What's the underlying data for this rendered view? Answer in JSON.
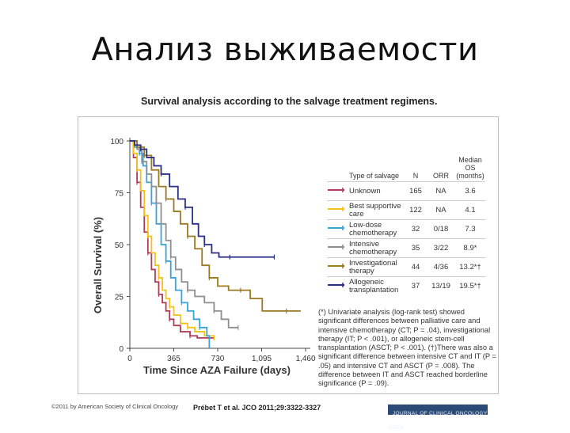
{
  "slide": {
    "title": "Анализ выживаемости"
  },
  "figure": {
    "title": "Survival analysis according to the salvage treatment regimens.",
    "footnote": "(*) Univariate analysis (log-rank test) showed significant differences between palliative care and intensive chemotherapy (CT; P = .04), investigational therapy (IT; P < .001), or allogeneic stem-cell transplantation (ASCT; P < .001). (†)There was also a significant difference between intensive CT and IT (P = .05) and intensive CT and ASCT (P = .008). The difference between IT and ASCT reached borderline significance (P = .09).",
    "legend_headers": {
      "type": "Type of salvage",
      "n": "N",
      "orr": "ORR",
      "median": "Median OS (months)"
    },
    "legend_rows": [
      {
        "name": "Unknown",
        "n": "165",
        "orr": "NA",
        "median": "3.6",
        "color": "#b03a5b"
      },
      {
        "name": "Best supportive care",
        "n": "122",
        "orr": "NA",
        "median": "4.1",
        "color": "#f2c21b"
      },
      {
        "name": "Low-dose chemotherapy",
        "n": "32",
        "orr": "0/18",
        "median": "7.3",
        "color": "#3aa3d8"
      },
      {
        "name": "Intensive chemotherapy",
        "n": "35",
        "orr": "3/22",
        "median": "8.9*",
        "color": "#8f8f8f"
      },
      {
        "name": "Investigational therapy",
        "n": "44",
        "orr": "4/36",
        "median": "13.2*†",
        "color": "#9a7a20"
      },
      {
        "name": "Allogeneic transplantation",
        "n": "37",
        "orr": "13/19",
        "median": "19.5*†",
        "color": "#2a2f86"
      }
    ]
  },
  "chart_data": {
    "type": "line",
    "xlabel": "Time Since AZA Failure (days)",
    "ylabel": "Overall Survival (%)",
    "xlim": [
      0,
      1460
    ],
    "ylim": [
      0,
      100
    ],
    "xticks": [
      "0",
      "365",
      "730",
      "1,095",
      "1,460"
    ],
    "yticks": [
      "0",
      "25",
      "50",
      "75",
      "100"
    ],
    "series": [
      {
        "name": "Unknown",
        "color": "#b03a5b",
        "points": [
          [
            0,
            100
          ],
          [
            30,
            92
          ],
          [
            60,
            80
          ],
          [
            90,
            68
          ],
          [
            120,
            56
          ],
          [
            150,
            46
          ],
          [
            180,
            38
          ],
          [
            210,
            32
          ],
          [
            240,
            26
          ],
          [
            270,
            22
          ],
          [
            300,
            18
          ],
          [
            330,
            14
          ],
          [
            365,
            11
          ],
          [
            420,
            8
          ],
          [
            500,
            6
          ],
          [
            560,
            5
          ],
          [
            640,
            5
          ],
          [
            700,
            5
          ]
        ]
      },
      {
        "name": "Best supportive care",
        "color": "#f2c21b",
        "points": [
          [
            0,
            100
          ],
          [
            30,
            94
          ],
          [
            60,
            86
          ],
          [
            90,
            76
          ],
          [
            120,
            64
          ],
          [
            150,
            54
          ],
          [
            180,
            46
          ],
          [
            210,
            40
          ],
          [
            240,
            34
          ],
          [
            270,
            28
          ],
          [
            300,
            24
          ],
          [
            330,
            20
          ],
          [
            365,
            16
          ],
          [
            420,
            12
          ],
          [
            480,
            10
          ],
          [
            540,
            8
          ],
          [
            620,
            6
          ],
          [
            700,
            5
          ]
        ]
      },
      {
        "name": "Low-dose chemotherapy",
        "color": "#3aa3d8",
        "points": [
          [
            0,
            100
          ],
          [
            40,
            97
          ],
          [
            80,
            94
          ],
          [
            110,
            88
          ],
          [
            140,
            80
          ],
          [
            180,
            70
          ],
          [
            220,
            60
          ],
          [
            260,
            50
          ],
          [
            300,
            42
          ],
          [
            340,
            34
          ],
          [
            380,
            28
          ],
          [
            430,
            22
          ],
          [
            480,
            18
          ],
          [
            530,
            14
          ],
          [
            580,
            10
          ],
          [
            640,
            6
          ],
          [
            660,
            0
          ]
        ]
      },
      {
        "name": "Intensive chemotherapy",
        "color": "#8f8f8f",
        "points": [
          [
            0,
            100
          ],
          [
            60,
            96
          ],
          [
            100,
            90
          ],
          [
            140,
            84
          ],
          [
            180,
            78
          ],
          [
            220,
            70
          ],
          [
            260,
            60
          ],
          [
            300,
            52
          ],
          [
            340,
            44
          ],
          [
            380,
            38
          ],
          [
            430,
            32
          ],
          [
            480,
            28
          ],
          [
            540,
            25
          ],
          [
            620,
            22
          ],
          [
            700,
            18
          ],
          [
            760,
            14
          ],
          [
            820,
            10
          ],
          [
            900,
            10
          ]
        ]
      },
      {
        "name": "Investigational therapy",
        "color": "#9a7a20",
        "points": [
          [
            0,
            100
          ],
          [
            60,
            97
          ],
          [
            120,
            93
          ],
          [
            180,
            86
          ],
          [
            240,
            78
          ],
          [
            300,
            72
          ],
          [
            365,
            66
          ],
          [
            420,
            60
          ],
          [
            480,
            54
          ],
          [
            540,
            48
          ],
          [
            600,
            40
          ],
          [
            660,
            34
          ],
          [
            730,
            30
          ],
          [
            820,
            28
          ],
          [
            920,
            28
          ],
          [
            1000,
            24
          ],
          [
            1100,
            18
          ],
          [
            1300,
            18
          ],
          [
            1420,
            18
          ]
        ]
      },
      {
        "name": "Allogeneic transplantation",
        "color": "#2a2f86",
        "points": [
          [
            0,
            100
          ],
          [
            40,
            98
          ],
          [
            90,
            96
          ],
          [
            140,
            92
          ],
          [
            200,
            88
          ],
          [
            260,
            84
          ],
          [
            330,
            78
          ],
          [
            400,
            72
          ],
          [
            460,
            68
          ],
          [
            520,
            60
          ],
          [
            570,
            54
          ],
          [
            620,
            50
          ],
          [
            680,
            46
          ],
          [
            740,
            44
          ],
          [
            830,
            44
          ],
          [
            950,
            44
          ],
          [
            1100,
            44
          ],
          [
            1200,
            44
          ]
        ]
      }
    ]
  },
  "footer": {
    "copyright": "©2011 by American Society of Clinical Oncology",
    "citation": "Prébet T et al. JCO 2011;29:3322-3327",
    "journal": "JOURNAL OF CLINICAL ONCOLOGY   ASCO"
  }
}
